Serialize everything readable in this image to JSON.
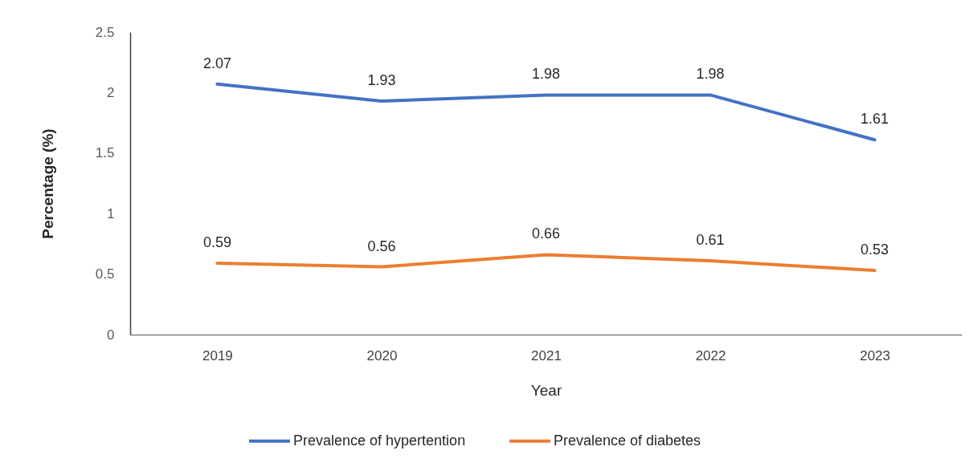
{
  "chart_data": {
    "type": "line",
    "xlabel": "Year",
    "ylabel": "Percentage (%)",
    "categories": [
      "2019",
      "2020",
      "2021",
      "2022",
      "2023"
    ],
    "series": [
      {
        "name": "Prevalence of hypertention",
        "color": "#4472c4",
        "values": [
          2.07,
          1.93,
          1.98,
          1.98,
          1.61
        ]
      },
      {
        "name": "Prevalence of diabetes",
        "color": "#ed7d31",
        "values": [
          0.59,
          0.56,
          0.66,
          0.61,
          0.53
        ]
      }
    ],
    "ylim": [
      0,
      2.5
    ],
    "yticks": [
      0,
      0.5,
      1,
      1.5,
      2,
      2.5
    ],
    "data_labels": true,
    "legend": "bottom"
  }
}
